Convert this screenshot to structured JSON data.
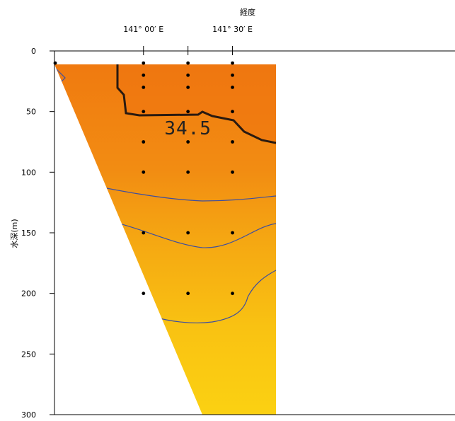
{
  "chart_data": {
    "type": "heatmap",
    "title": "",
    "xlabel": "経度",
    "ylabel": "水深(m)",
    "x_top_ticks": [
      {
        "x": 141.0,
        "label": "141° 00′ E"
      },
      {
        "x": 141.5,
        "label": "141° 30′ E"
      }
    ],
    "x_range": [
      140.5,
      142.75
    ],
    "ylim": [
      0,
      300
    ],
    "y_ticks": [
      0,
      50,
      100,
      150,
      200,
      250,
      300
    ],
    "y_inverted": true,
    "stations": [
      {
        "lon": 140.5,
        "depths": [
          10
        ]
      },
      {
        "lon": 141.0,
        "depths": [
          10,
          20,
          30,
          50,
          75,
          100,
          150,
          200
        ]
      },
      {
        "lon": 141.25,
        "depths": [
          10,
          20,
          30,
          50,
          75,
          100,
          150,
          200
        ]
      },
      {
        "lon": 141.5,
        "depths": [
          10,
          20,
          30,
          50,
          75,
          100,
          150,
          200
        ]
      }
    ],
    "contour_labels": [
      {
        "text": "34.5",
        "lon": 141.25,
        "depth": 63
      }
    ],
    "colors": {
      "high": "#f07a10",
      "mid": "#f5a712",
      "low": "#fbd112",
      "contour": "#3c4ea0",
      "contour_bold": "#2a1a10"
    }
  }
}
